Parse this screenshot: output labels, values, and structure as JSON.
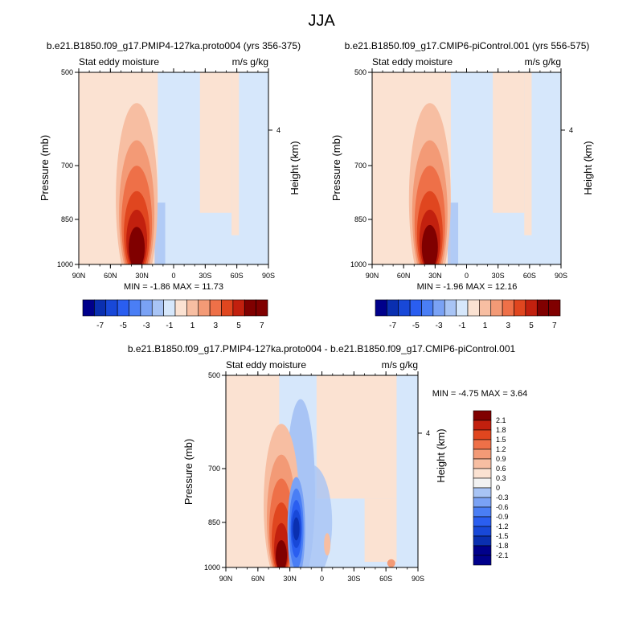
{
  "page_title": "JJA",
  "chart_data": [
    {
      "type": "heatmap",
      "title": "b.e21.B1850.f09_g17.PMIP4-127ka.proto004 (yrs 356-375)",
      "left_label": "Stat eddy moisture",
      "right_label": "m/s g/kg",
      "ylabel": "Pressure (mb)",
      "ylabel_right": "Height (km)",
      "x_ticks": [
        "90N",
        "60N",
        "30N",
        "0",
        "30S",
        "60S",
        "90S"
      ],
      "y_ticks": [
        "500",
        "700",
        "850",
        "1000"
      ],
      "y_right_ticks": [
        "4"
      ],
      "ylim": [
        1000,
        500
      ],
      "stats": "MIN =  -1.86  MAX =  11.73",
      "min": -1.86,
      "max": 11.73,
      "levels": [
        -7,
        -6,
        -5,
        -4,
        -3,
        -2,
        -1,
        0,
        1,
        2,
        3,
        4,
        5,
        6,
        7
      ],
      "colorbar_labels": [
        "-7",
        "-5",
        "-3",
        "-1",
        "1",
        "3",
        "5",
        "7"
      ],
      "features": [
        {
          "lat": 35,
          "p": 960,
          "value": 11.73,
          "kind": "max"
        },
        {
          "lat": 15,
          "p": 900,
          "value": -1.86,
          "kind": "min"
        }
      ]
    },
    {
      "type": "heatmap",
      "title": "b.e21.B1850.f09_g17.CMIP6-piControl.001 (yrs 556-575)",
      "left_label": "Stat eddy moisture",
      "right_label": "m/s g/kg",
      "ylabel": "Pressure (mb)",
      "ylabel_right": "Height (km)",
      "x_ticks": [
        "90N",
        "60N",
        "30N",
        "0",
        "30S",
        "60S",
        "90S"
      ],
      "y_ticks": [
        "500",
        "700",
        "850",
        "1000"
      ],
      "y_right_ticks": [
        "4"
      ],
      "ylim": [
        1000,
        500
      ],
      "stats": "MIN =  -1.96  MAX =  12.16",
      "min": -1.96,
      "max": 12.16,
      "levels": [
        -7,
        -6,
        -5,
        -4,
        -3,
        -2,
        -1,
        0,
        1,
        2,
        3,
        4,
        5,
        6,
        7
      ],
      "colorbar_labels": [
        "-7",
        "-5",
        "-3",
        "-1",
        "1",
        "3",
        "5",
        "7"
      ],
      "features": [
        {
          "lat": 35,
          "p": 960,
          "value": 12.16,
          "kind": "max"
        },
        {
          "lat": 15,
          "p": 900,
          "value": -1.96,
          "kind": "min"
        }
      ]
    },
    {
      "type": "heatmap",
      "title": "b.e21.B1850.f09_g17.PMIP4-127ka.proto004 - b.e21.B1850.f09_g17.CMIP6-piControl.001",
      "left_label": "Stat eddy moisture",
      "right_label": "m/s g/kg",
      "ylabel": "Pressure (mb)",
      "ylabel_right": "Height (km)",
      "x_ticks": [
        "90N",
        "60N",
        "30N",
        "0",
        "30S",
        "60S",
        "90S"
      ],
      "y_ticks": [
        "500",
        "700",
        "850",
        "1000"
      ],
      "y_right_ticks": [
        "4"
      ],
      "ylim": [
        1000,
        500
      ],
      "stats": "MIN =  -4.75  MAX =   3.64",
      "min": -4.75,
      "max": 3.64,
      "levels": [
        -2.1,
        -1.8,
        -1.5,
        -1.2,
        -0.9,
        -0.6,
        -0.3,
        0,
        0.3,
        0.6,
        0.9,
        1.2,
        1.5,
        1.8,
        2.1
      ],
      "colorbar_labels": [
        "2.1",
        "1.8",
        "1.5",
        "1.2",
        "0.9",
        "0.6",
        "0.3",
        "0",
        "-0.3",
        "-0.6",
        "-0.9",
        "-1.2",
        "-1.5",
        "-1.8",
        "-2.1"
      ],
      "features": [
        {
          "lat": 38,
          "p": 970,
          "value": 3.64,
          "kind": "max"
        },
        {
          "lat": 24,
          "p": 900,
          "value": -4.75,
          "kind": "min"
        }
      ]
    }
  ],
  "colors": {
    "palette": [
      "#00008b",
      "#0a2fb0",
      "#1848d8",
      "#2a5ef0",
      "#4a7ef5",
      "#7aa2f5",
      "#a8c4f5",
      "#d6e7fb",
      "#fbe2d2",
      "#f7bea2",
      "#f39a76",
      "#ee7048",
      "#e0461f",
      "#c2200e",
      "#800000"
    ],
    "zero_band": "#eeeeee"
  }
}
